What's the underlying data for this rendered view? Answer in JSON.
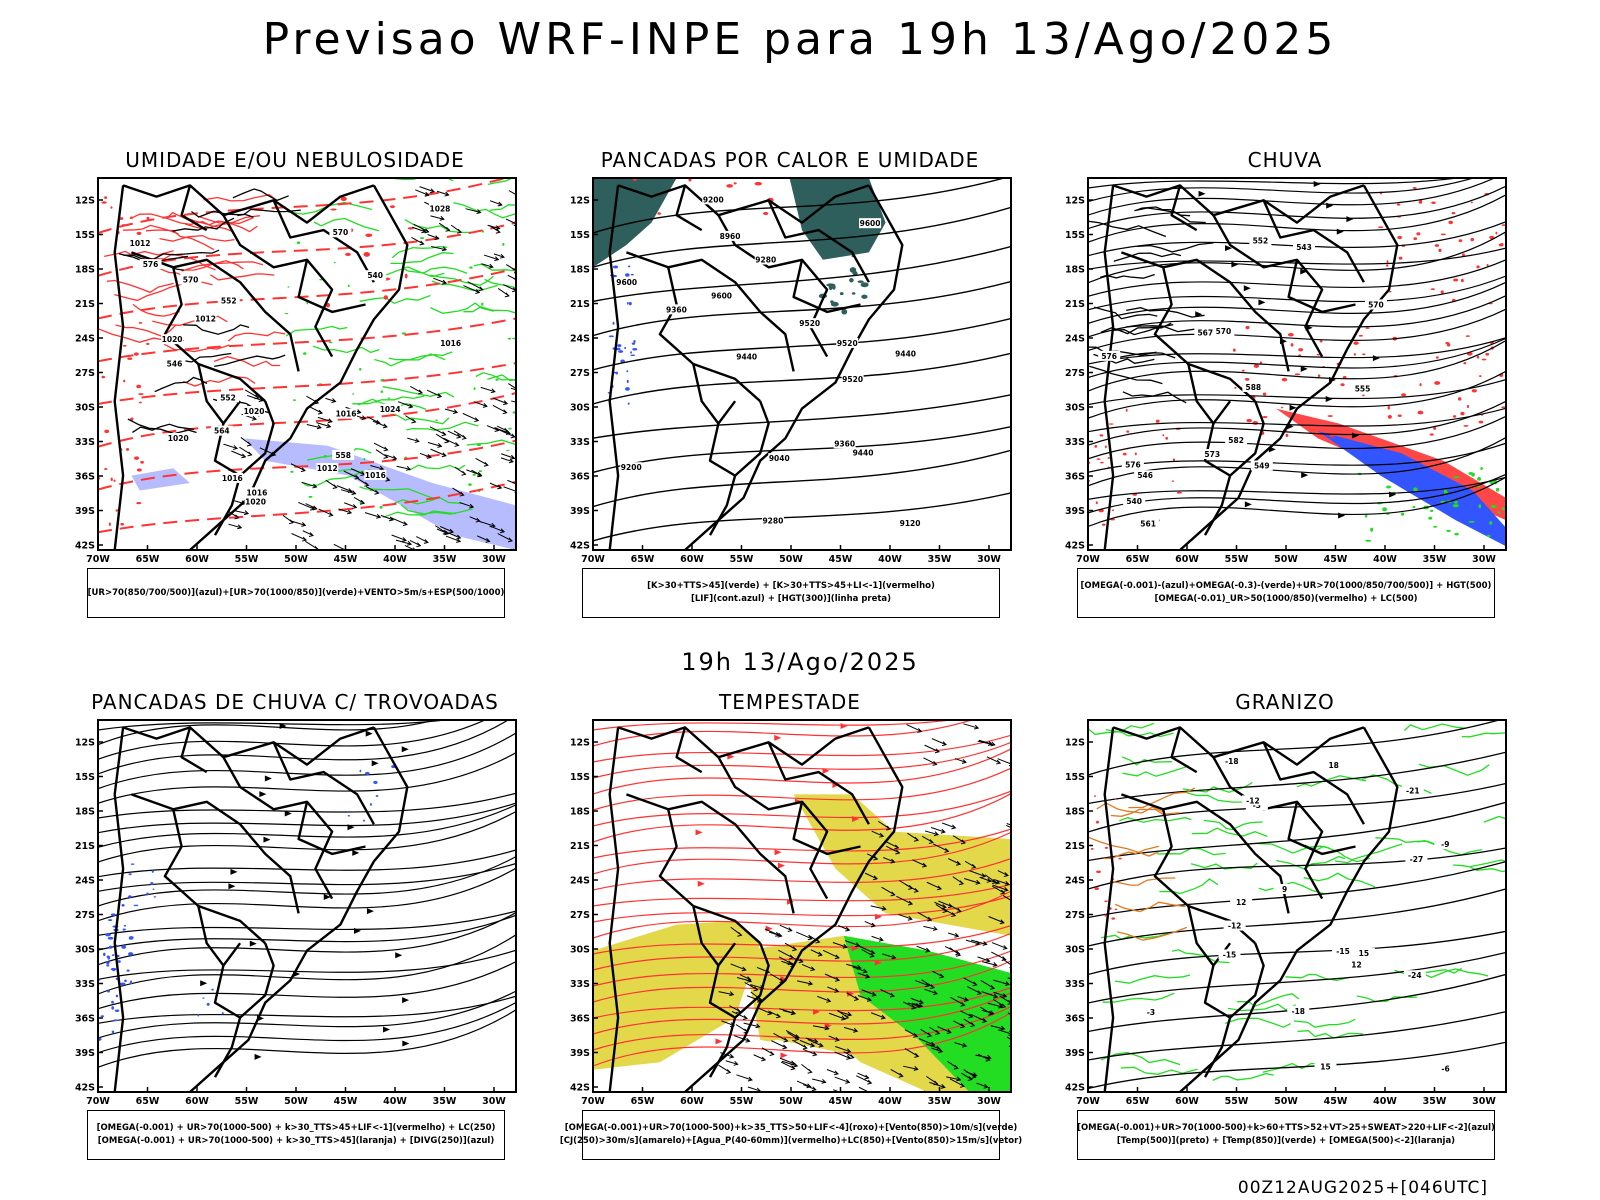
{
  "title": "Previsao WRF-INPE  para 19h 13/Ago/2025",
  "mid_label": "19h 13/Ago/2025",
  "footer_label": "00Z12AUG2025+[046UTC]",
  "axes": {
    "lat_labels": [
      "12S",
      "15S",
      "18S",
      "21S",
      "24S",
      "27S",
      "30S",
      "33S",
      "36S",
      "39S",
      "42S"
    ],
    "lon_labels": [
      "70W",
      "65W",
      "60W",
      "55W",
      "50W",
      "45W",
      "40W",
      "35W",
      "30W"
    ]
  },
  "colors": {
    "red": "#ff3333",
    "green": "#22dd22",
    "blue": "#3355ff",
    "lavender": "#aab0ff",
    "teal": "#2f5f5c",
    "yellow": "#e3d84a",
    "orange": "#e07a20",
    "black": "#000000"
  },
  "panels": [
    {
      "id": "umidade",
      "title": "UMIDADE E/OU NEBULOSIDADE",
      "legend": [
        "[UR>70(850/700/500)](azul)+[UR>70(1000/850)](verde)+VENTO>5m/s+ESP(500/1000)"
      ],
      "labels": [
        "1012",
        "1012",
        "1016",
        "1016",
        "1016",
        "1016",
        "1020",
        "1020",
        "1020",
        "1020",
        "1024",
        "1028",
        "1016",
        "1012",
        "570",
        "576",
        "564",
        "558",
        "552",
        "546",
        "540",
        "552",
        "570"
      ]
    },
    {
      "id": "pancadas_calor",
      "title": "PANCADAS POR CALOR E UMIDADE",
      "legend": [
        "[K>30+TTS>45](verde) + [K>30+TTS>45+LI<-1](vermelho)",
        "[LIF](cont.azul) + [HGT(300)](linha preta)"
      ],
      "labels": [
        "9600",
        "9600",
        "9600",
        "9520",
        "9520",
        "9520",
        "9440",
        "9440",
        "9440",
        "9360",
        "9360",
        "9280",
        "9280",
        "9200",
        "9200",
        "9120",
        "9040",
        "8960"
      ]
    },
    {
      "id": "chuva",
      "title": "CHUVA",
      "legend": [
        "[OMEGA(-0.001)-(azul)+OMEGA(-0.3)-(verde)+UR>70(1000/850/700/500)] + HGT(500)",
        "[OMEGA(-0.01)_UR>50(1000/850)(vermelho) + LC(500)"
      ],
      "labels": [
        "576",
        "576",
        "570",
        "570",
        "567",
        "561",
        "555",
        "552",
        "549",
        "546",
        "543",
        "540",
        "573",
        "582",
        "588"
      ]
    },
    {
      "id": "trovoadas",
      "title": "PANCADAS DE CHUVA C/ TROVOADAS",
      "legend": [
        "[OMEGA(-0.001) + UR>70(1000-500) + k>30_TTS>45+LIF<-1](vermelho) + LC(250)",
        "[OMEGA(-0.001) + UR>70(1000-500) + k>30_TTS>45](laranja) + [DIVG(250)](azul)"
      ],
      "labels": []
    },
    {
      "id": "tempestade",
      "title": "TEMPESTADE",
      "legend": [
        "[OMEGA(-0.001)+UR>70(1000-500)+k>35_TTS>50+LIF<-4](roxo)+[Vento(850)>10m/s](verde)",
        "[CJ(250)>30m/s](amarelo)+[Agua_P(40-60mm)](vermelho)+LC(850)+[Vento(850)>15m/s](vetor)"
      ],
      "labels": []
    },
    {
      "id": "granizo",
      "title": "GRANIZO",
      "legend": [
        "[OMEGA(-0.001)+UR>70(1000-500)+k>60+TTS>52+VT>25+SWEAT>220+LIF<-2](azul)",
        "[Temp(500)](preto) + [Temp(850)](verde) + [OMEGA(500)<-2](laranja)"
      ],
      "labels": [
        "-3",
        "-3",
        "-6",
        "-9",
        "-12",
        "-12",
        "-15",
        "-15",
        "-18",
        "-18",
        "-21",
        "-24",
        "-27",
        "12",
        "15",
        "18",
        "15",
        "12",
        "9"
      ]
    }
  ]
}
